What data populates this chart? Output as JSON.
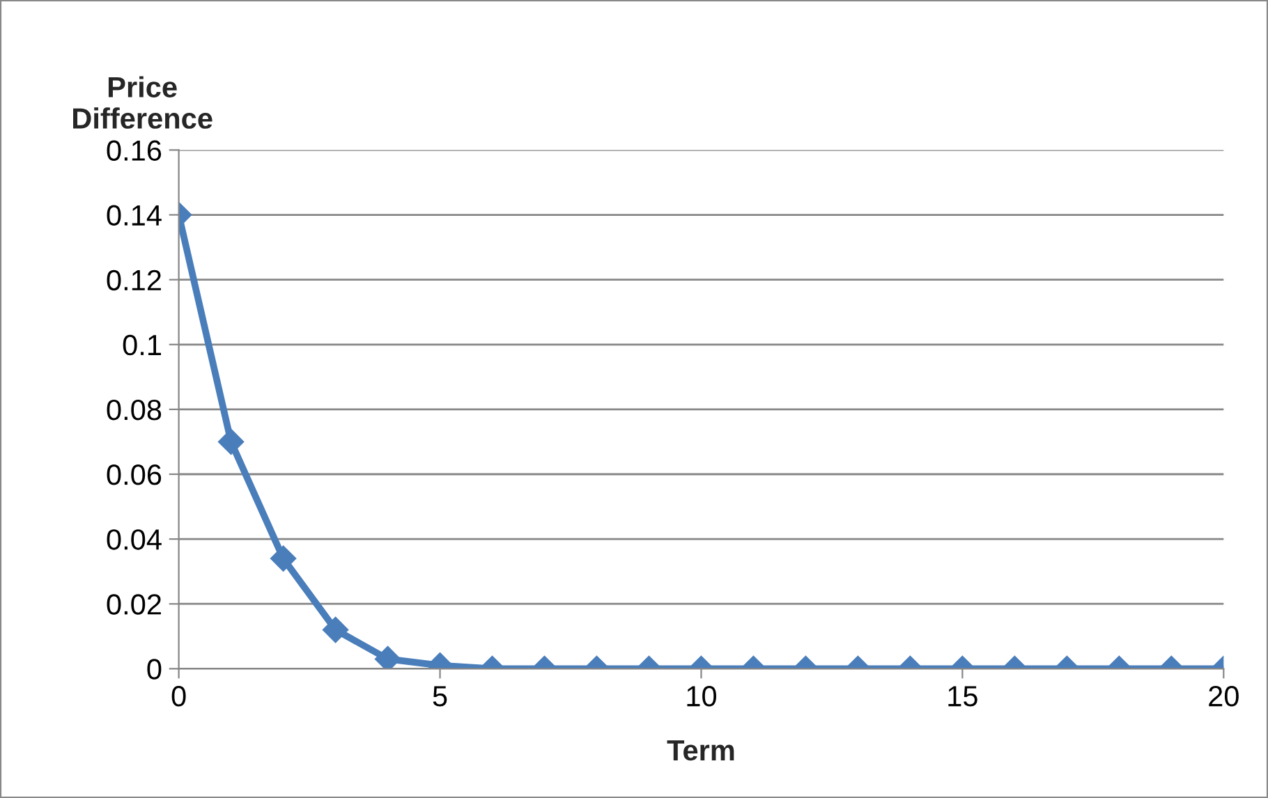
{
  "chart_data": {
    "type": "line",
    "xlabel": "Term",
    "ylabel": "Price\nDifference",
    "x": [
      0,
      1,
      2,
      3,
      4,
      5,
      6,
      7,
      8,
      9,
      10,
      11,
      12,
      13,
      14,
      15,
      16,
      17,
      18,
      19,
      20
    ],
    "series": [
      {
        "color": "#4a7ebb",
        "values": [
          0.14,
          0.07,
          0.034,
          0.012,
          0.003,
          0.001,
          0,
          0,
          0,
          0,
          0,
          0,
          0,
          0,
          0,
          0,
          0,
          0,
          0,
          0,
          0
        ]
      }
    ],
    "xlim": [
      0,
      20
    ],
    "xticks": [
      0,
      5,
      10,
      15,
      20
    ],
    "ylim": [
      0,
      0.16
    ],
    "yticks": [
      {
        "value": 0,
        "label": "0"
      },
      0.02,
      0.04,
      0.06,
      0.08,
      0.1,
      0.12,
      0.14,
      0.16
    ],
    "grid": "y",
    "marker": "diamond",
    "line_style": "solid",
    "legend": false
  }
}
